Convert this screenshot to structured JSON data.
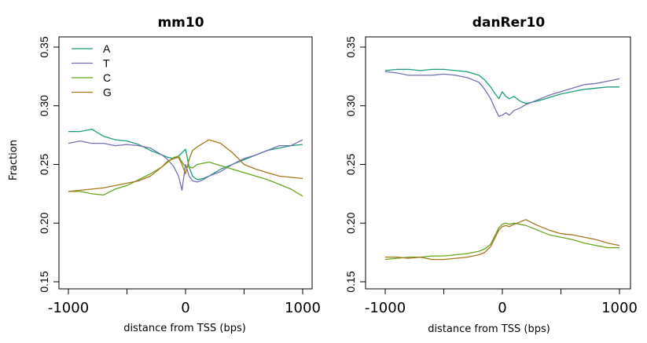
{
  "colors": {
    "A": "#1b9e77",
    "T": "#7570b3",
    "C": "#66a61e",
    "G": "#a6761d"
  },
  "chart_data": [
    {
      "type": "line",
      "title": "mm10",
      "xlabel": "distance from TSS (bps)",
      "ylabel": "Fraction",
      "xlim": [
        -1000,
        1000
      ],
      "ylim": [
        0.15,
        0.35
      ],
      "xticks": [
        -1000,
        -500,
        0,
        500,
        1000
      ],
      "xtick_labels": [
        "-1000",
        "",
        "0",
        "",
        "1000"
      ],
      "yticks": [
        0.15,
        0.2,
        0.25,
        0.3,
        0.35
      ],
      "ytick_labels": [
        "0.15",
        "0.20",
        "0.25",
        "0.30",
        "0.35"
      ],
      "legend": {
        "position": "top-left",
        "entries": [
          "A",
          "T",
          "C",
          "G"
        ]
      },
      "x": [
        -1000,
        -900,
        -800,
        -700,
        -600,
        -500,
        -400,
        -300,
        -200,
        -150,
        -100,
        -60,
        -30,
        0,
        30,
        60,
        100,
        150,
        200,
        300,
        400,
        500,
        600,
        700,
        800,
        900,
        1000
      ],
      "series": [
        {
          "name": "A",
          "values": [
            0.278,
            0.278,
            0.28,
            0.274,
            0.271,
            0.27,
            0.267,
            0.262,
            0.258,
            0.256,
            0.255,
            0.257,
            0.26,
            0.263,
            0.248,
            0.24,
            0.237,
            0.238,
            0.24,
            0.246,
            0.25,
            0.254,
            0.258,
            0.262,
            0.264,
            0.266,
            0.267
          ]
        },
        {
          "name": "T",
          "values": [
            0.268,
            0.27,
            0.268,
            0.268,
            0.266,
            0.267,
            0.266,
            0.264,
            0.258,
            0.254,
            0.248,
            0.24,
            0.228,
            0.25,
            0.24,
            0.236,
            0.235,
            0.237,
            0.24,
            0.244,
            0.25,
            0.255,
            0.258,
            0.262,
            0.266,
            0.266,
            0.271
          ]
        },
        {
          "name": "C",
          "values": [
            0.227,
            0.227,
            0.225,
            0.224,
            0.229,
            0.232,
            0.237,
            0.242,
            0.248,
            0.252,
            0.256,
            0.257,
            0.252,
            0.248,
            0.248,
            0.247,
            0.25,
            0.251,
            0.252,
            0.249,
            0.246,
            0.243,
            0.24,
            0.237,
            0.233,
            0.229,
            0.223
          ]
        },
        {
          "name": "G",
          "values": [
            0.227,
            0.228,
            0.229,
            0.23,
            0.232,
            0.234,
            0.236,
            0.24,
            0.248,
            0.253,
            0.255,
            0.256,
            0.25,
            0.242,
            0.254,
            0.262,
            0.265,
            0.268,
            0.271,
            0.268,
            0.26,
            0.25,
            0.246,
            0.243,
            0.24,
            0.239,
            0.238
          ]
        }
      ]
    },
    {
      "type": "line",
      "title": "danRer10",
      "xlabel": "distance from TSS (bps)",
      "ylabel": "",
      "xlim": [
        -1000,
        1000
      ],
      "ylim": [
        0.15,
        0.35
      ],
      "xticks": [
        -1000,
        -500,
        0,
        500,
        1000
      ],
      "xtick_labels": [
        "-1000",
        "",
        "0",
        "",
        "1000"
      ],
      "yticks": [
        0.15,
        0.2,
        0.25,
        0.3,
        0.35
      ],
      "ytick_labels": [
        "0.15",
        "0.20",
        "0.25",
        "0.30",
        "0.35"
      ],
      "x": [
        -1000,
        -900,
        -800,
        -700,
        -600,
        -500,
        -400,
        -300,
        -200,
        -150,
        -100,
        -60,
        -30,
        0,
        30,
        60,
        100,
        150,
        200,
        300,
        400,
        500,
        600,
        700,
        800,
        900,
        1000
      ],
      "series": [
        {
          "name": "A",
          "values": [
            0.33,
            0.331,
            0.331,
            0.33,
            0.331,
            0.331,
            0.33,
            0.329,
            0.326,
            0.322,
            0.316,
            0.31,
            0.306,
            0.312,
            0.308,
            0.306,
            0.308,
            0.304,
            0.302,
            0.304,
            0.307,
            0.31,
            0.312,
            0.314,
            0.315,
            0.316,
            0.316
          ]
        },
        {
          "name": "T",
          "values": [
            0.329,
            0.328,
            0.326,
            0.326,
            0.326,
            0.327,
            0.326,
            0.324,
            0.32,
            0.314,
            0.306,
            0.297,
            0.291,
            0.292,
            0.294,
            0.292,
            0.296,
            0.298,
            0.301,
            0.305,
            0.309,
            0.312,
            0.315,
            0.318,
            0.319,
            0.321,
            0.323
          ]
        },
        {
          "name": "C",
          "values": [
            0.169,
            0.17,
            0.171,
            0.171,
            0.172,
            0.172,
            0.173,
            0.174,
            0.176,
            0.178,
            0.182,
            0.19,
            0.196,
            0.199,
            0.2,
            0.199,
            0.2,
            0.199,
            0.198,
            0.194,
            0.19,
            0.188,
            0.186,
            0.183,
            0.181,
            0.179,
            0.179
          ]
        },
        {
          "name": "G",
          "values": [
            0.171,
            0.171,
            0.17,
            0.171,
            0.169,
            0.169,
            0.17,
            0.171,
            0.173,
            0.175,
            0.18,
            0.188,
            0.194,
            0.197,
            0.198,
            0.197,
            0.199,
            0.201,
            0.203,
            0.198,
            0.194,
            0.191,
            0.19,
            0.188,
            0.186,
            0.183,
            0.181
          ]
        }
      ]
    }
  ]
}
